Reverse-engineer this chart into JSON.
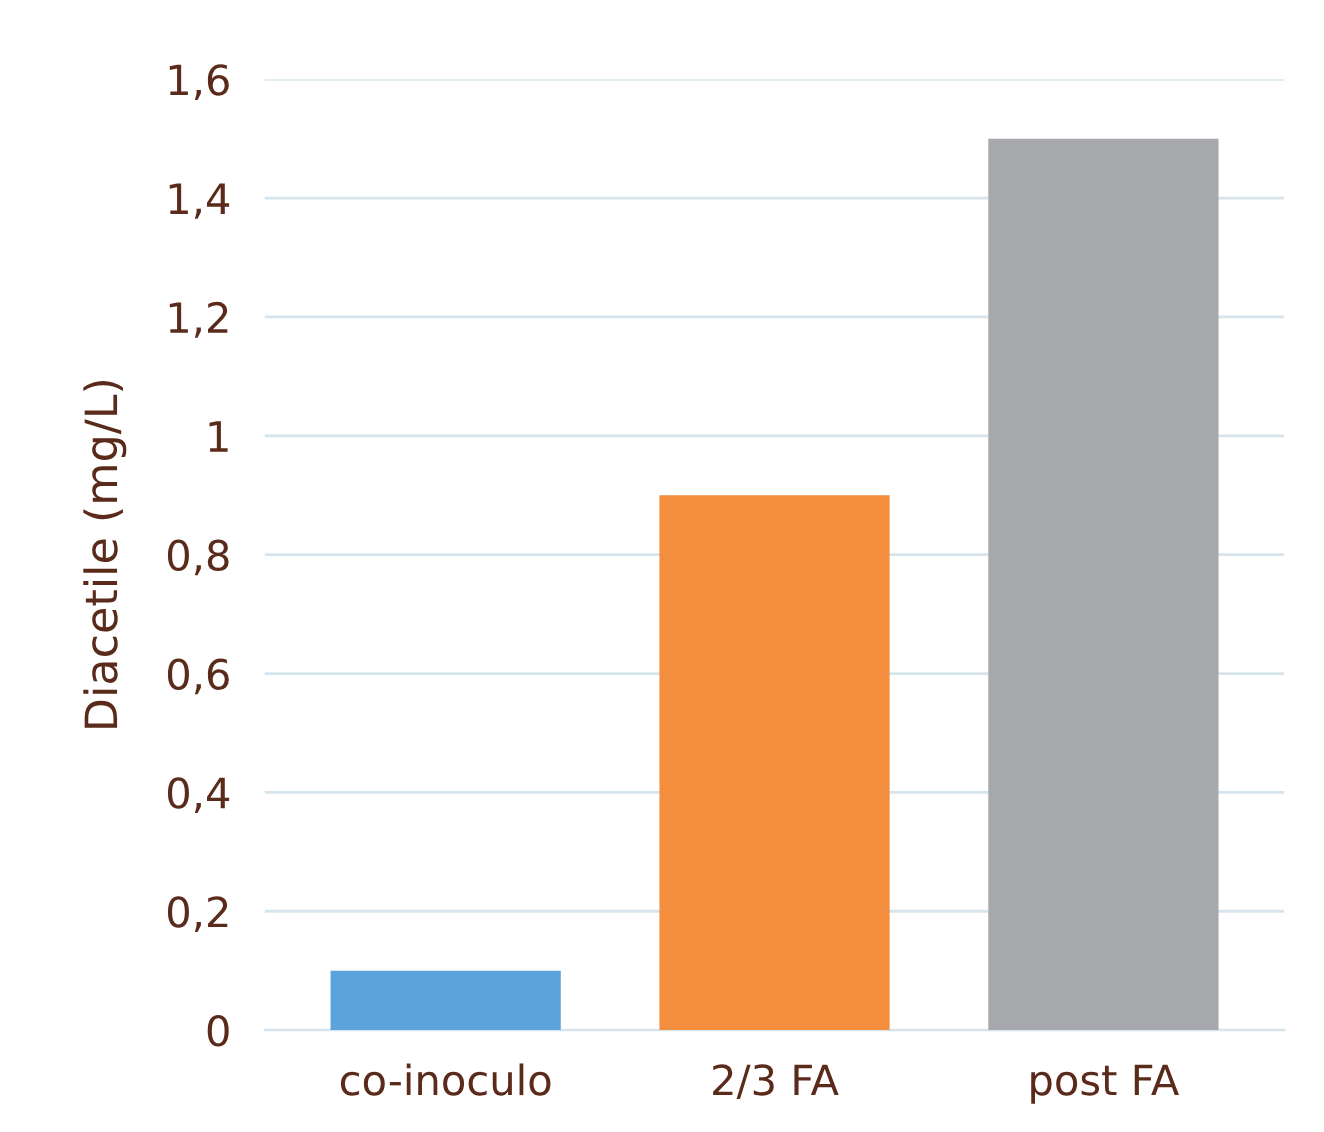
{
  "chart_data": {
    "type": "bar",
    "ylabel": "Diacetile (mg/L)",
    "categories": [
      "co-inoculo",
      "2/3 FA",
      "post FA"
    ],
    "values": [
      0.1,
      0.9,
      1.5
    ],
    "colors": [
      "#5ba3dc",
      "#f48e3f",
      "#a6a8ab"
    ],
    "ylim": [
      0,
      1.6
    ],
    "yticks": [
      0,
      {
        "value": 0.2,
        "label": "0,2"
      },
      {
        "value": 0.4,
        "label": "0,4"
      },
      {
        "value": 0.6,
        "label": "0,6"
      },
      {
        "value": 0.8,
        "label": "0,8"
      },
      1,
      {
        "value": 1.2,
        "label": "1,2"
      },
      {
        "value": 1.4,
        "label": "1,4"
      },
      {
        "value": 1.6,
        "label": "1,6"
      }
    ],
    "grid": "y"
  }
}
